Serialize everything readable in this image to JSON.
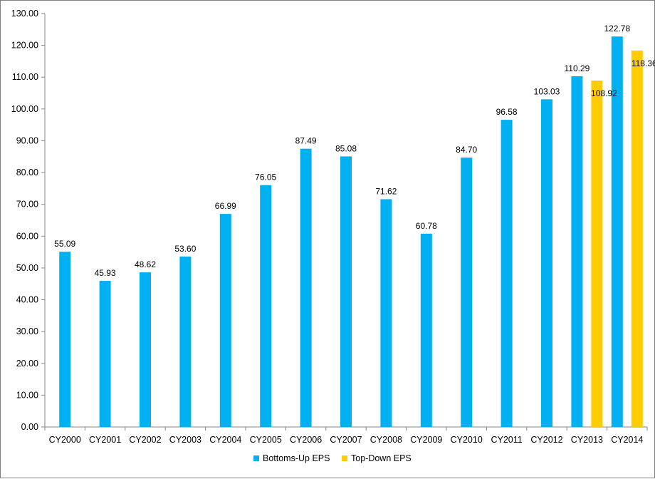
{
  "chart_data": {
    "type": "bar",
    "categories": [
      "CY2000",
      "CY2001",
      "CY2002",
      "CY2003",
      "CY2004",
      "CY2005",
      "CY2006",
      "CY2007",
      "CY2008",
      "CY2009",
      "CY2010",
      "CY2011",
      "CY2012",
      "CY2013",
      "CY2014"
    ],
    "series": [
      {
        "name": "Bottoms-Up EPS",
        "color": "#00B0F0",
        "values": [
          55.09,
          45.93,
          48.62,
          53.6,
          66.99,
          76.05,
          87.49,
          85.08,
          71.62,
          60.78,
          84.7,
          96.58,
          103.03,
          110.29,
          122.78
        ],
        "labels": [
          "55.09",
          "45.93",
          "48.62",
          "53.60",
          "66.99",
          "76.05",
          "87.49",
          "85.08",
          "71.62",
          "60.78",
          "84.70",
          "96.58",
          "103.03",
          "110.29",
          "122.78"
        ]
      },
      {
        "name": "Top-Down EPS",
        "color": "#FFCC00",
        "values": [
          null,
          null,
          null,
          null,
          null,
          null,
          null,
          null,
          null,
          null,
          null,
          null,
          null,
          108.92,
          118.36
        ],
        "labels": [
          "",
          "",
          "",
          "",
          "",
          "",
          "",
          "",
          "",
          "",
          "",
          "",
          "",
          "108.92",
          "118.36"
        ]
      }
    ],
    "ylim": [
      0,
      130
    ],
    "yticks": [
      "0.00",
      "10.00",
      "20.00",
      "30.00",
      "40.00",
      "50.00",
      "60.00",
      "70.00",
      "80.00",
      "90.00",
      "100.00",
      "110.00",
      "120.00",
      "130.00"
    ],
    "grid": false,
    "legend_position": "bottom",
    "title": "",
    "xlabel": "",
    "ylabel": ""
  }
}
